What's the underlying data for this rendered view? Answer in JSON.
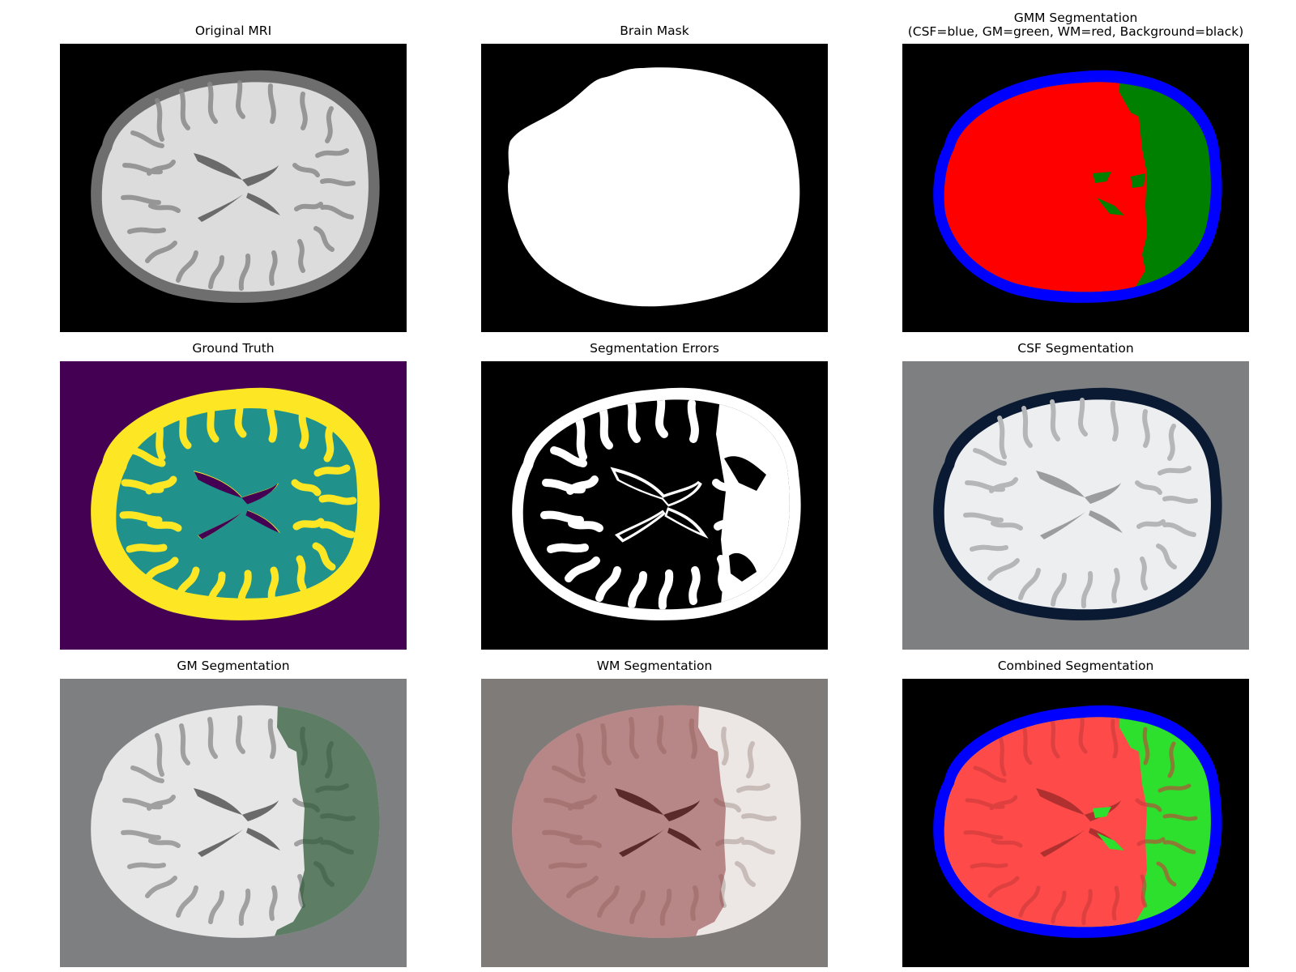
{
  "figure": {
    "panels": [
      {
        "id": "original-mri",
        "title_line1": "Original MRI"
      },
      {
        "id": "brain-mask",
        "title_line1": "Brain Mask"
      },
      {
        "id": "gmm-segmentation",
        "title_line1": "GMM Segmentation",
        "title_line2": "(CSF=blue, GM=green, WM=red, Background=black)"
      },
      {
        "id": "ground-truth",
        "title_line1": "Ground Truth"
      },
      {
        "id": "segmentation-errors",
        "title_line1": "Segmentation Errors"
      },
      {
        "id": "csf-segmentation",
        "title_line1": "CSF Segmentation"
      },
      {
        "id": "gm-segmentation",
        "title_line1": "GM Segmentation"
      },
      {
        "id": "wm-segmentation",
        "title_line1": "WM Segmentation"
      },
      {
        "id": "combined-segmentation",
        "title_line1": "Combined Segmentation"
      }
    ]
  },
  "colors": {
    "background_black": "#000000",
    "csf": "#0000ff",
    "gm": "#008000",
    "wm": "#ff0000",
    "ground_truth_bg": "#440154",
    "ground_truth_gm": "#fde725",
    "ground_truth_wm": "#21918c",
    "overlay_gray": "#7e7f80",
    "overlay_csf_dark": "#0b1a33",
    "overlay_gm": "#2f5a3a",
    "overlay_wm": "#8a3838",
    "combined_wm": "#ff4a4a",
    "combined_gm": "#2ee02e"
  }
}
